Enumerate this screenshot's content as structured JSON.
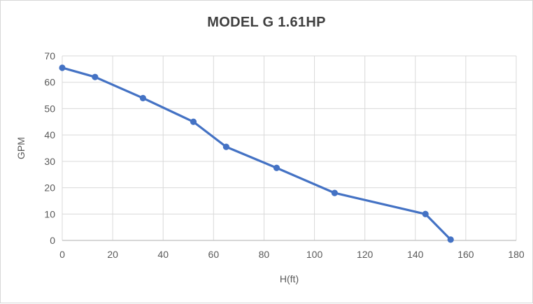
{
  "chart_data": {
    "type": "line",
    "title": "MODEL G 1.61HP",
    "xlabel": "H(ft)",
    "ylabel": "GPM",
    "x": [
      0,
      13,
      32,
      52,
      65,
      85,
      108,
      144,
      154
    ],
    "y": [
      65.5,
      62,
      54,
      45,
      35.5,
      27.5,
      18,
      10,
      0.3
    ],
    "series_name": "GPM",
    "xlim": [
      0,
      180
    ],
    "ylim": [
      0,
      70
    ],
    "xtick_step": 20,
    "ytick_step": 10,
    "grid": true,
    "legend": false,
    "marker": "circle",
    "colors": {
      "series": "#4472C4",
      "gridline": "#D9D9D9",
      "axis_line": "#BFBFBF",
      "tick_label": "#595959",
      "axis_title": "#595959",
      "title": "#404040",
      "border": "#D7D7D7",
      "background": "#FFFFFF"
    }
  }
}
